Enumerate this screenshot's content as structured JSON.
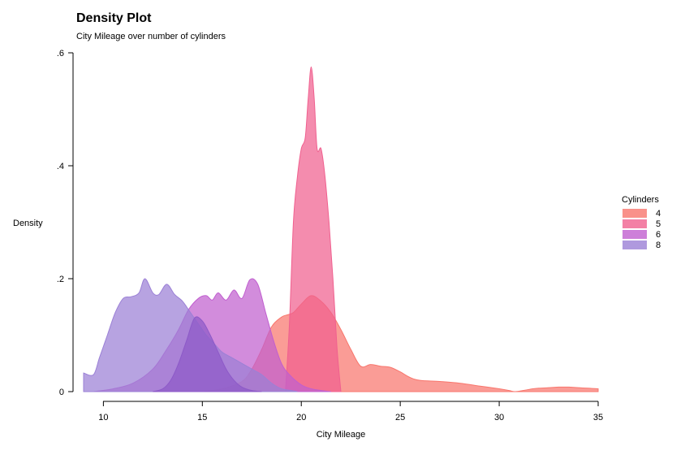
{
  "chart_data": {
    "type": "area",
    "title": "Density Plot",
    "subtitle": "City Mileage over number of cylinders",
    "xlabel": "City Mileage",
    "ylabel": "Density",
    "xlim": [
      9,
      35
    ],
    "ylim": [
      0,
      0.6
    ],
    "x_ticks": [
      10,
      15,
      20,
      25,
      30,
      35
    ],
    "x_tick_labels": [
      "10",
      "15",
      "20",
      "25",
      "30",
      "35"
    ],
    "y_ticks": [
      0,
      0.2,
      0.4,
      0.6
    ],
    "y_tick_labels": [
      "0",
      ".2",
      ".4",
      ".6"
    ],
    "grid": false,
    "legend": {
      "title": "Cylinders",
      "position": "right"
    },
    "series": [
      {
        "name": "4",
        "color": "#F8766D",
        "x": [
          15.0,
          16.0,
          17.0,
          17.5,
          18.0,
          18.5,
          19.0,
          19.3,
          19.6,
          20.0,
          20.5,
          21.0,
          21.5,
          22.0,
          22.5,
          23.0,
          23.5,
          24.0,
          24.5,
          25.0,
          25.5,
          26.0,
          27.0,
          28.0,
          29.0,
          30.0,
          30.5,
          30.8,
          31.2,
          31.7,
          32.0,
          32.5,
          33.0,
          33.5,
          34.0,
          34.5,
          35.0
        ],
        "values": [
          0.0,
          0.005,
          0.018,
          0.04,
          0.075,
          0.115,
          0.132,
          0.136,
          0.14,
          0.155,
          0.17,
          0.16,
          0.14,
          0.11,
          0.075,
          0.045,
          0.048,
          0.045,
          0.043,
          0.035,
          0.025,
          0.02,
          0.018,
          0.015,
          0.01,
          0.005,
          0.002,
          0.0,
          0.002,
          0.005,
          0.006,
          0.007,
          0.008,
          0.008,
          0.007,
          0.006,
          0.005
        ]
      },
      {
        "name": "5",
        "color": "#F0608F",
        "x": [
          19.2,
          19.4,
          19.6,
          19.8,
          20.0,
          20.2,
          20.35,
          20.5,
          20.65,
          20.8,
          21.0,
          21.2,
          21.4,
          21.6,
          21.8,
          22.0
        ],
        "values": [
          0.0,
          0.12,
          0.3,
          0.38,
          0.43,
          0.45,
          0.52,
          0.575,
          0.52,
          0.43,
          0.43,
          0.38,
          0.3,
          0.2,
          0.08,
          0.0
        ]
      },
      {
        "name": "6",
        "color": "#C05FCF",
        "x": [
          9.5,
          10.5,
          11.5,
          12.5,
          13.2,
          13.8,
          14.3,
          14.8,
          15.2,
          15.5,
          15.8,
          16.2,
          16.6,
          17.0,
          17.4,
          17.8,
          18.2,
          18.6,
          19.0,
          19.4,
          20.0,
          20.5,
          21.0,
          21.5
        ],
        "values": [
          0.0,
          0.005,
          0.015,
          0.04,
          0.075,
          0.11,
          0.145,
          0.165,
          0.17,
          0.162,
          0.175,
          0.162,
          0.18,
          0.165,
          0.198,
          0.19,
          0.14,
          0.09,
          0.05,
          0.03,
          0.012,
          0.005,
          0.002,
          0.0
        ]
      },
      {
        "name": "8",
        "color": "#9B80D6",
        "x": [
          9.0,
          9.5,
          9.8,
          10.2,
          10.6,
          11.0,
          11.4,
          11.8,
          12.1,
          12.5,
          12.8,
          13.2,
          13.6,
          14.0,
          14.4,
          14.8,
          15.2,
          15.6,
          16.0,
          16.5,
          17.0,
          17.5,
          18.0,
          18.5,
          19.0,
          19.5,
          19.8
        ],
        "values": [
          0.033,
          0.03,
          0.06,
          0.1,
          0.14,
          0.165,
          0.168,
          0.175,
          0.2,
          0.175,
          0.172,
          0.19,
          0.172,
          0.16,
          0.14,
          0.12,
          0.1,
          0.085,
          0.07,
          0.06,
          0.05,
          0.04,
          0.03,
          0.015,
          0.005,
          0.002,
          0.0
        ]
      },
      {
        "name": "",
        "color": "#8D5AC8",
        "x": [
          12.5,
          13.0,
          13.4,
          13.8,
          14.2,
          14.6,
          15.0,
          15.4,
          15.8,
          16.2,
          16.6,
          17.0,
          17.5,
          18.0
        ],
        "values": [
          0.0,
          0.005,
          0.02,
          0.05,
          0.09,
          0.13,
          0.125,
          0.1,
          0.07,
          0.04,
          0.02,
          0.008,
          0.002,
          0.0
        ]
      }
    ]
  }
}
